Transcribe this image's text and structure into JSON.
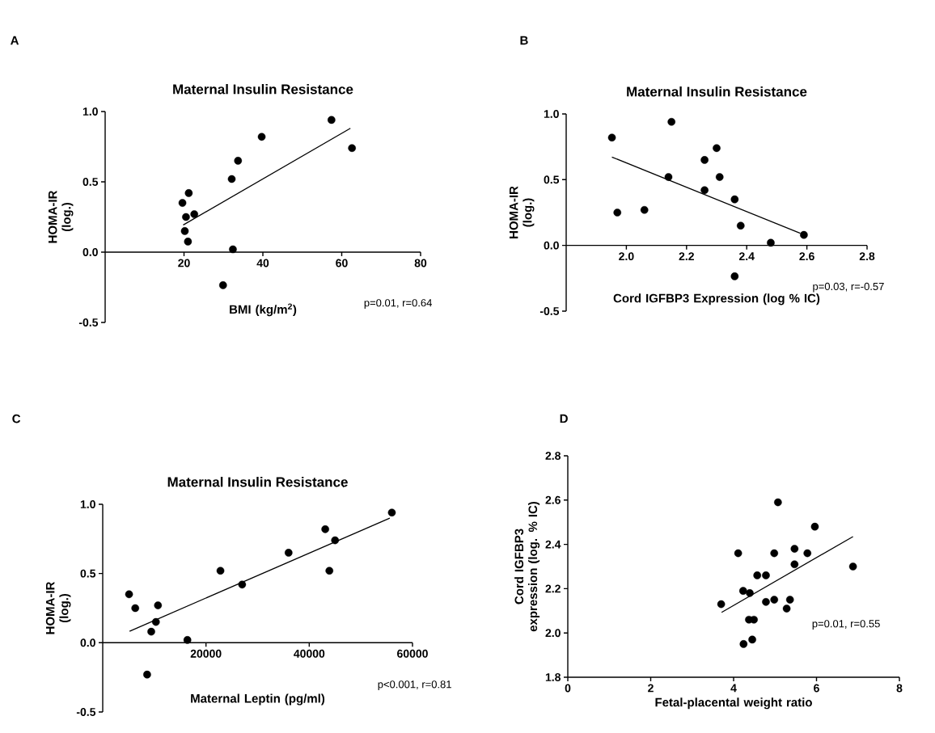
{
  "chart_data": [
    {
      "type": "scatter",
      "title": "Maternal Insulin Resistance",
      "xlabel": "BMI (kg/m$^{2}$)",
      "ylabel": "HOMA-IR (log.)",
      "xlim": [
        0,
        80
      ],
      "ylim": [
        -0.5,
        1.0
      ],
      "xticks": [
        20,
        40,
        60,
        80
      ],
      "yticks": [
        -0.5,
        {
          "value": 0,
          "label": "0.0"
        },
        0.5,
        {
          "value": 1.0,
          "label": "1.0"
        }
      ],
      "annotations": [
        "A",
        "p=0.01, r=0.64"
      ],
      "series": [
        {
          "marker": "circle",
          "color": "#000000",
          "x": [
            19.6,
            21.2,
            20.5,
            22.6,
            20.2,
            21.0,
            32.1,
            33.7,
            32.4,
            29.9,
            39.7,
            57.4,
            62.6
          ],
          "values": [
            0.35,
            0.42,
            0.25,
            0.27,
            0.15,
            0.075,
            0.52,
            0.65,
            0.02,
            -0.235,
            0.82,
            0.94,
            0.74
          ]
        },
        {
          "type": "line",
          "marker": "none",
          "color": "#000000",
          "x": [
            19.8,
            62.2
          ],
          "values": [
            0.193,
            0.881
          ]
        }
      ]
    },
    {
      "type": "scatter",
      "title": "Maternal Insulin Resistance",
      "xlabel": "Cord IGFBP3 Expression (log % IC)",
      "ylabel": "HOMA-IR (log.)",
      "xlim": [
        1.8,
        2.8
      ],
      "ylim": [
        -0.5,
        1.0
      ],
      "xticks": [
        {
          "value": 2.0,
          "label": "2.0"
        },
        2.2,
        2.4,
        2.6,
        2.8
      ],
      "yticks": [
        -0.5,
        {
          "value": 0,
          "label": "0.0"
        },
        0.5,
        {
          "value": 1.0,
          "label": "1.0"
        }
      ],
      "annotations": [
        "B",
        "p=0.03, r=-0.57"
      ],
      "series": [
        {
          "marker": "circle",
          "color": "#000000",
          "x": [
            1.952,
            1.97,
            2.06,
            2.14,
            2.15,
            2.26,
            2.26,
            2.3,
            2.31,
            2.36,
            2.38,
            2.48,
            2.59,
            2.36
          ],
          "values": [
            0.82,
            0.25,
            0.27,
            0.52,
            0.94,
            0.65,
            0.42,
            0.74,
            0.52,
            0.35,
            0.15,
            0.02,
            0.08,
            -0.235
          ]
        },
        {
          "type": "line",
          "marker": "none",
          "color": "#000000",
          "x": [
            1.952,
            2.578
          ],
          "values": [
            0.672,
            0.092
          ]
        }
      ]
    },
    {
      "type": "scatter",
      "title": "Maternal Insulin Resistance",
      "xlabel": "Maternal Leptin (pg/ml)",
      "ylabel": "HOMA-IR (log.)",
      "xlim": [
        0,
        60000
      ],
      "ylim": [
        -0.5,
        1.0
      ],
      "xticks": [
        20000,
        40000,
        60000
      ],
      "yticks": [
        -0.5,
        {
          "value": 0,
          "label": "0.0"
        },
        0.5,
        {
          "value": 1.0,
          "label": "1.0"
        }
      ],
      "annotations": [
        "C",
        "p<0.001, r=0.81"
      ],
      "series": [
        {
          "marker": "circle",
          "color": "#000000",
          "x": [
            5100,
            6300,
            10700,
            10300,
            9400,
            8600,
            16400,
            22800,
            27000,
            36000,
            43100,
            43900,
            45000,
            56000
          ],
          "values": [
            0.35,
            0.25,
            0.27,
            0.15,
            0.08,
            -0.23,
            0.02,
            0.52,
            0.42,
            0.65,
            0.82,
            0.52,
            0.74,
            0.94
          ]
        },
        {
          "type": "line",
          "marker": "none",
          "color": "#000000",
          "x": [
            5200,
            55600
          ],
          "values": [
            0.083,
            0.9
          ]
        }
      ]
    },
    {
      "type": "scatter",
      "xlabel": "Fetal-placental weight ratio",
      "ylabel": "Cord IGFBP3 expression (log. % IC)",
      "xlim": [
        0,
        8
      ],
      "ylim": [
        1.8,
        2.8
      ],
      "xticks": [
        0,
        2,
        4,
        6,
        8
      ],
      "yticks": [
        1.8,
        {
          "value": 2.0,
          "label": "2.0"
        },
        2.2,
        2.4,
        2.6,
        2.8
      ],
      "annotations": [
        "D",
        "p=0.01, r=0.55"
      ],
      "series": [
        {
          "marker": "circle",
          "color": "#000000",
          "x": [
            3.7,
            4.11,
            4.23,
            4.39,
            4.37,
            4.49,
            4.24,
            4.45,
            4.57,
            4.78,
            4.78,
            4.98,
            4.98,
            5.07,
            5.28,
            5.36,
            5.47,
            5.47,
            5.78,
            5.96,
            6.88
          ],
          "values": [
            2.13,
            2.36,
            2.19,
            2.18,
            2.06,
            2.06,
            1.95,
            1.97,
            2.26,
            2.26,
            2.14,
            2.15,
            2.36,
            2.59,
            2.11,
            2.15,
            2.31,
            2.38,
            2.36,
            2.48,
            2.3
          ]
        },
        {
          "type": "line",
          "marker": "none",
          "color": "#000000",
          "x": [
            3.71,
            6.88
          ],
          "values": [
            2.093,
            2.435
          ]
        }
      ]
    }
  ]
}
